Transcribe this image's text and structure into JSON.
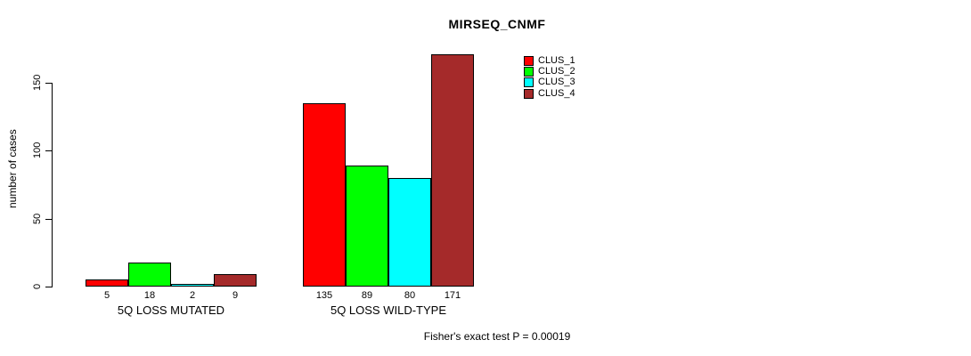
{
  "chart_data": {
    "type": "bar",
    "title": "MIRSEQ_CNMF",
    "ylabel": "number of cases",
    "xlabel": "",
    "categories": [
      "5Q LOSS MUTATED",
      "5Q LOSS WILD-TYPE"
    ],
    "series": [
      {
        "name": "CLUS_1",
        "color": "#ff0000",
        "values": [
          5,
          135
        ]
      },
      {
        "name": "CLUS_2",
        "color": "#00ff00",
        "values": [
          18,
          89
        ]
      },
      {
        "name": "CLUS_3",
        "color": "#00ffff",
        "values": [
          2,
          80
        ]
      },
      {
        "name": "CLUS_4",
        "color": "#a52a2a",
        "values": [
          9,
          171
        ]
      }
    ],
    "bar_value_labels_shown": true,
    "yticks": [
      0,
      50,
      100,
      150
    ],
    "ylim": [
      0,
      171
    ],
    "grid": false,
    "legend_position": "top-right",
    "annotation": "Fisher's exact test P = 0.00019"
  }
}
